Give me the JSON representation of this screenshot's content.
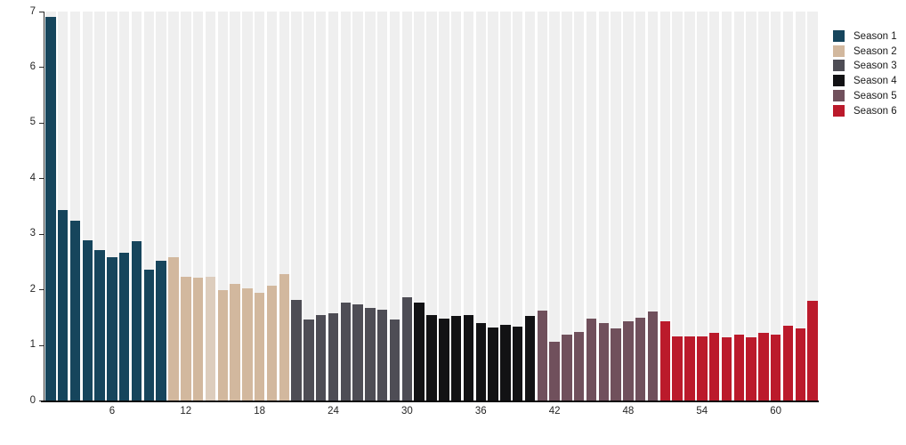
{
  "chart_data": {
    "type": "bar",
    "title": "",
    "xlabel": "",
    "ylabel": "",
    "ylim": [
      0,
      7
    ],
    "y_ticks": [
      0,
      1,
      2,
      3,
      4,
      5,
      6,
      7
    ],
    "x_ticks": [
      6,
      12,
      18,
      24,
      30,
      36,
      42,
      48,
      54,
      60
    ],
    "grid": "none",
    "background_stripes_color": "#efefef",
    "legend_position": "top-right",
    "faded_episodes": [
      14
    ],
    "series": [
      {
        "name": "Season 1",
        "color": "#16455c",
        "episodes_start": 1,
        "values": [
          6.9,
          3.43,
          3.24,
          2.88,
          2.7,
          2.58,
          2.66,
          2.87,
          2.36,
          2.52
        ]
      },
      {
        "name": "Season 2",
        "color": "#d2b89e",
        "episodes_start": 11,
        "values": [
          2.58,
          2.23,
          2.21,
          2.22,
          1.98,
          2.1,
          2.02,
          1.94,
          2.07,
          2.27
        ]
      },
      {
        "name": "Season 3",
        "color": "#4e4d55",
        "episodes_start": 21,
        "values": [
          1.81,
          1.46,
          1.53,
          1.57,
          1.77,
          1.73,
          1.66,
          1.64,
          1.46,
          1.86
        ]
      },
      {
        "name": "Season 4",
        "color": "#121214",
        "episodes_start": 31,
        "values": [
          1.77,
          1.54,
          1.47,
          1.52,
          1.54,
          1.39,
          1.32,
          1.36,
          1.33,
          1.52
        ]
      },
      {
        "name": "Season 5",
        "color": "#70505c",
        "episodes_start": 41,
        "values": [
          1.61,
          1.06,
          1.19,
          1.23,
          1.47,
          1.4,
          1.29,
          1.42,
          1.49,
          1.6
        ]
      },
      {
        "name": "Season 6",
        "color": "#bb1a2b",
        "episodes_start": 51,
        "values": [
          1.42,
          1.15,
          1.15,
          1.15,
          1.21,
          1.13,
          1.18,
          1.14,
          1.21,
          1.19,
          1.34,
          1.3,
          1.79
        ]
      }
    ]
  }
}
